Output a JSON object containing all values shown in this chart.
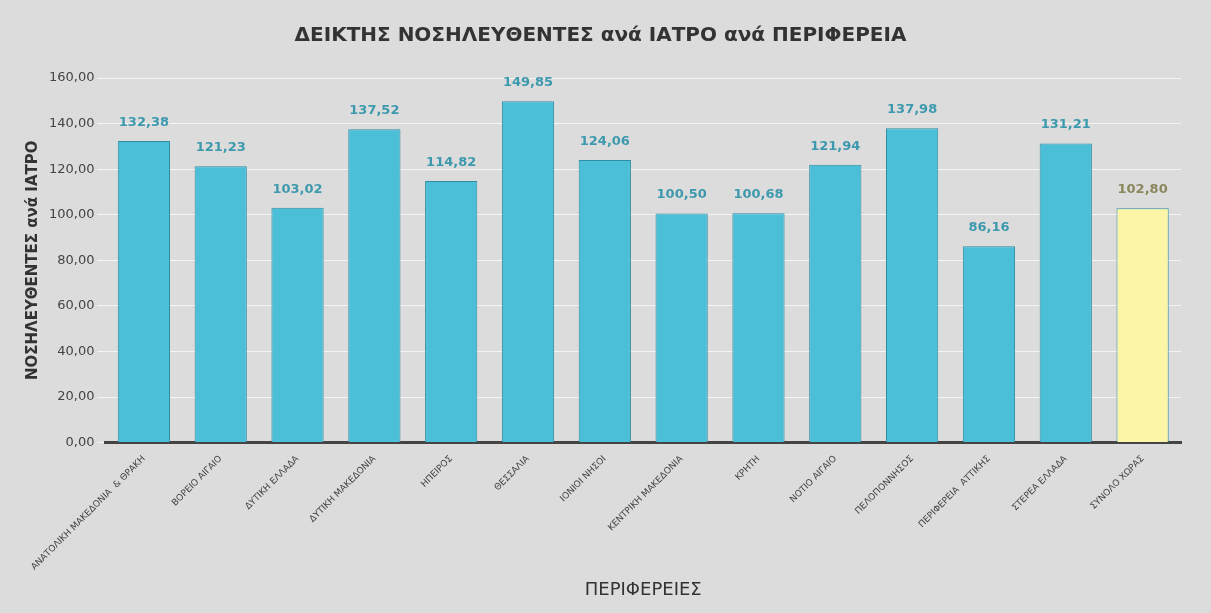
{
  "chart_data": {
    "type": "bar",
    "title": "ΔΕΙΚΤΗΣ ΝΟΣΗΛΕΥΘΕΝΤΕΣ ανά ΙΑΤΡΟ ανά ΠΕΡΙΦΕΡΕΙΑ",
    "xlabel": "ΠΕΡΙΦΕΡΕΙΕΣ",
    "ylabel": "ΝΟΣΗΛΕΥΘΕΝΤΕΣ ανά ΙΑΤΡΟ",
    "categories": [
      "ΑΝΑΤΟΛΙΚΗ ΜΑΚΕΔΟΝΙΑ  & ΘΡΑΚΗ",
      "ΒΟΡΕΙΟ ΑΙΓΑΙΟ",
      "ΔΥΤΙΚΗ ΕΛΛΑΔΑ",
      "ΔΥΤΙΚΗ ΜΑΚΕΔΟΝΙΑ",
      "ΗΠΕΙΡΟΣ",
      "ΘΕΣΣΑΛΙΑ",
      "ΙΟΝΙΟΙ ΝΗΣΟΙ",
      "ΚΕΝΤΡΙΚΗ ΜΑΚΕΔΟΝΙΑ",
      "ΚΡΗΤΗ",
      "ΝΟΤΙΟ ΑΙΓΑΙΟ",
      "ΠΕΛΟΠΟΝΝΗΣΟΣ",
      "ΠΕΡΙΦΕΡΕΙΑ  ΑΤΤΙΚΗΣ",
      "ΣΤΕΡΕΑ ΕΛΛΑΔΑ",
      "ΣΥΝΟΛΟ ΧΩΡΑΣ"
    ],
    "values": [
      132.38,
      121.23,
      103.02,
      137.52,
      114.82,
      149.85,
      124.06,
      100.5,
      100.68,
      121.94,
      137.98,
      86.16,
      131.21,
      102.8
    ],
    "value_labels": [
      "132,38",
      "121,23",
      "103,02",
      "137,52",
      "114,82",
      "149,85",
      "124,06",
      "100,50",
      "100,68",
      "121,94",
      "137,98",
      "86,16",
      "131,21",
      "102,80"
    ],
    "colors": [
      "#4cbfd8",
      "#4cbfd8",
      "#4cbfd8",
      "#4cbfd8",
      "#4cbfd8",
      "#4cbfd8",
      "#4cbfd8",
      "#4cbfd8",
      "#4cbfd8",
      "#4cbfd8",
      "#4cbfd8",
      "#4cbfd8",
      "#4cbfd8",
      "#fbf5a8"
    ],
    "ylim": [
      0,
      160
    ],
    "yticks": [
      {
        "value": 0,
        "label": "0,00"
      },
      {
        "value": 20,
        "label": "20,00"
      },
      {
        "value": 40,
        "label": "40,00"
      },
      {
        "value": 60,
        "label": "60,00"
      },
      {
        "value": 80,
        "label": "80,00"
      },
      {
        "value": 100,
        "label": "100,00"
      },
      {
        "value": 120,
        "label": "120,00"
      },
      {
        "value": 140,
        "label": "140,00"
      },
      {
        "value": 160,
        "label": "160,00"
      }
    ],
    "grid": "y",
    "legend": false
  }
}
